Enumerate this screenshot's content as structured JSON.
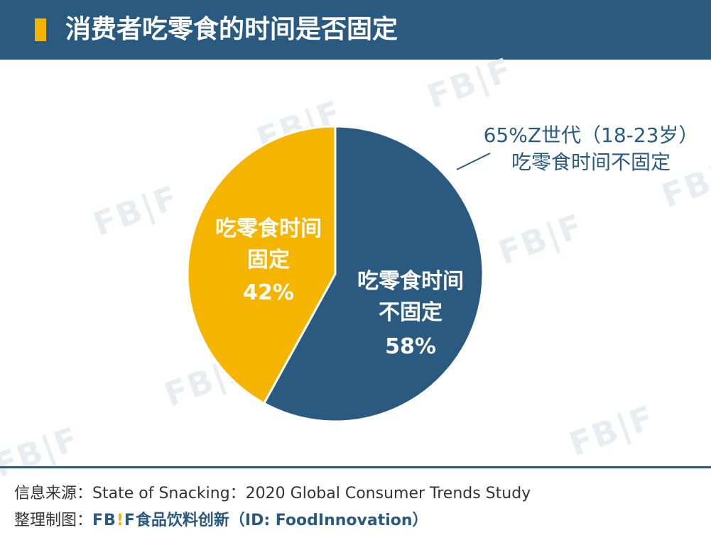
{
  "header": {
    "title": "消费者吃零食的时间是否固定",
    "accent_color": "#f5b400",
    "bg_color": "#2a5a7f"
  },
  "watermark_text": "FB|F",
  "chart_data": {
    "type": "pie",
    "slices": [
      {
        "label_line1": "吃零食时间",
        "label_line2": "不固定",
        "value": 58,
        "value_label": "58%",
        "color": "#2a5a7f"
      },
      {
        "label_line1": "吃零食时间",
        "label_line2": "固定",
        "value": 42,
        "value_label": "42%",
        "color": "#f5b400"
      }
    ],
    "start_angle_deg": 0,
    "direction": "clockwise",
    "annotation": {
      "line1": "65%Z世代（18-23岁）",
      "line2": "吃零食时间不固定"
    }
  },
  "footer": {
    "source_prefix": "信息来源：",
    "source_text": "State of Snacking：2020 Global Consumer Trends Study",
    "credit_prefix": "整理制图：",
    "credit_logo_a": "FB",
    "credit_logo_b": "!",
    "credit_logo_c": "F",
    "credit_brand": "食品饮料创新（ID: FoodInnovation）"
  }
}
